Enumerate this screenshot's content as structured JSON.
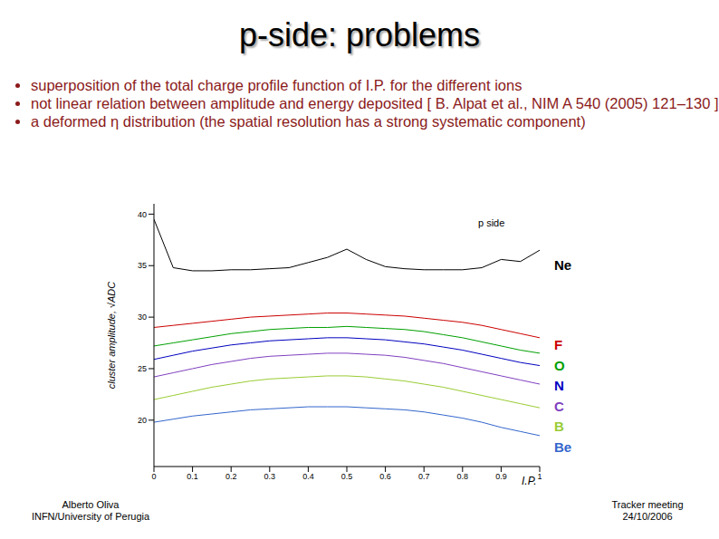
{
  "title": "p-side: problems",
  "bullets": [
    "superposition of the total charge profile function of I.P. for the different ions",
    "not linear relation between amplitude and energy deposited [ B. Alpat et al., NIM A 540 (2005) 121–130 ]",
    "a deformed η distribution (the spatial resolution has a strong systematic component)"
  ],
  "footer": {
    "left": [
      "Alberto Oliva",
      "INFN/University of Perugia"
    ],
    "right": [
      "Tracker meeting",
      "24/10/2006"
    ]
  },
  "chart_data": {
    "type": "line",
    "annotation": "p side",
    "x_label": "I.P.",
    "y_label": "cluster amplitude, √ADC",
    "x": [
      0,
      0.05,
      0.1,
      0.15,
      0.2,
      0.25,
      0.3,
      0.35,
      0.4,
      0.45,
      0.5,
      0.55,
      0.6,
      0.65,
      0.7,
      0.75,
      0.8,
      0.85,
      0.9,
      0.95,
      1
    ],
    "xlim": [
      0,
      1
    ],
    "xticks": [
      0,
      0.1,
      0.2,
      0.3,
      0.4,
      0.5,
      0.6,
      0.7,
      0.8,
      0.9,
      1
    ],
    "ylim": [
      15.5,
      41
    ],
    "yticks": [
      20,
      25,
      30,
      35,
      40
    ],
    "series": [
      {
        "name": "Ne",
        "color": "#000000",
        "values": [
          39.5,
          34.8,
          34.5,
          34.5,
          34.6,
          34.6,
          34.7,
          34.8,
          35.3,
          35.8,
          36.6,
          35.6,
          34.9,
          34.7,
          34.6,
          34.6,
          34.6,
          34.8,
          35.6,
          35.4,
          36.5
        ]
      },
      {
        "name": "F",
        "color": "#cc0000",
        "values": [
          29.0,
          29.2,
          29.4,
          29.6,
          29.8,
          30.0,
          30.1,
          30.2,
          30.3,
          30.4,
          30.4,
          30.3,
          30.2,
          30.1,
          29.9,
          29.7,
          29.5,
          29.2,
          28.8,
          28.4,
          28.0
        ]
      },
      {
        "name": "O",
        "color": "#00a000",
        "values": [
          27.2,
          27.5,
          27.8,
          28.1,
          28.4,
          28.6,
          28.8,
          28.9,
          29.0,
          29.0,
          29.1,
          29.0,
          28.9,
          28.8,
          28.6,
          28.3,
          28.0,
          27.6,
          27.2,
          26.8,
          26.5
        ]
      },
      {
        "name": "N",
        "color": "#0000c0",
        "values": [
          25.9,
          26.3,
          26.7,
          27.0,
          27.3,
          27.5,
          27.7,
          27.8,
          27.9,
          28.0,
          28.0,
          27.9,
          27.8,
          27.6,
          27.4,
          27.1,
          26.8,
          26.4,
          26.0,
          25.6,
          25.3
        ]
      },
      {
        "name": "C",
        "color": "#8040c0",
        "values": [
          24.2,
          24.6,
          25.0,
          25.4,
          25.7,
          26.0,
          26.2,
          26.3,
          26.4,
          26.5,
          26.5,
          26.4,
          26.3,
          26.1,
          25.8,
          25.5,
          25.1,
          24.7,
          24.3,
          23.9,
          23.5
        ]
      },
      {
        "name": "B",
        "color": "#99cc33",
        "values": [
          22.0,
          22.4,
          22.8,
          23.2,
          23.5,
          23.8,
          24.0,
          24.1,
          24.2,
          24.3,
          24.3,
          24.2,
          24.0,
          23.8,
          23.5,
          23.2,
          22.8,
          22.4,
          22.0,
          21.6,
          21.2
        ]
      },
      {
        "name": "Be",
        "color": "#3366cc",
        "values": [
          19.8,
          20.1,
          20.4,
          20.6,
          20.8,
          21.0,
          21.1,
          21.2,
          21.3,
          21.3,
          21.3,
          21.2,
          21.1,
          21.0,
          20.8,
          20.5,
          20.2,
          19.8,
          19.3,
          18.9,
          18.5
        ]
      }
    ]
  }
}
